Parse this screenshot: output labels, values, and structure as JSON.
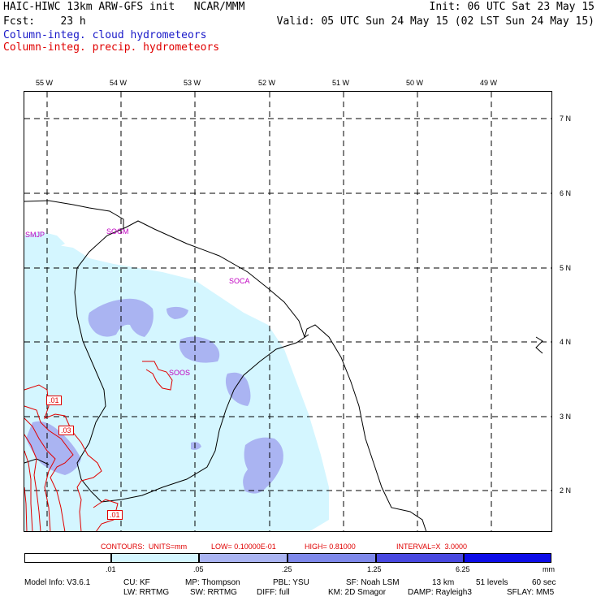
{
  "header": {
    "line1_left": "HAIC-HIWC 13km ARW-GFS init   NCAR/MMM",
    "line1_right": "Init: 06 UTC Sat 23 May 15",
    "line2_left": "Fcst:    23 h",
    "line2_right": "Valid: 05 UTC Sun 24 May 15 (02 LST Sun 24 May 15)",
    "line3": "Column-integ. cloud hydrometeors",
    "line4": "Column-integ. precip. hydrometeors"
  },
  "colors": {
    "cloud_text": "#1818c8",
    "precip_text": "#e00000",
    "station": "#c000c0",
    "shade1": "#d4f6ff",
    "shade2": "#aab4f2",
    "shade3": "#7e88ea",
    "shade4": "#4848e0",
    "shade5": "#0c0ce8"
  },
  "longitudes": [
    "55 W",
    "54 W",
    "53 W",
    "52 W",
    "51 W",
    "50 W",
    "49 W"
  ],
  "latitudes": [
    "7 N",
    "6 N",
    "5 N",
    "4 N",
    "3 N",
    "2 N"
  ],
  "stations": [
    "SMJP",
    "SOGM",
    "SOCA",
    "SOOS"
  ],
  "contour_labels": [
    ".01",
    ".03",
    ".01"
  ],
  "contours_line": {
    "contours": "CONTOURS:  UNITS=mm",
    "low": "LOW= 0.10000E-01",
    "high": "HIGH= 0.81000",
    "interval": "INTERVAL=X  3.0000"
  },
  "legend": {
    "ticks": [
      ".01",
      ".05",
      ".25",
      "1.25",
      "6.25"
    ],
    "units": "mm"
  },
  "model_info": {
    "row1": [
      "Model Info: V3.6.1",
      "CU: KF",
      "MP: Thompson",
      "PBL: YSU",
      "SF: Noah LSM",
      "13 km",
      "51 levels",
      "60 sec"
    ],
    "row2": [
      "LW: RRTMG",
      "SW: RRTMG",
      "DIFF: full",
      "KM: 2D Smagor",
      "DAMP: Rayleigh3",
      "SFLAY: MM5"
    ]
  }
}
